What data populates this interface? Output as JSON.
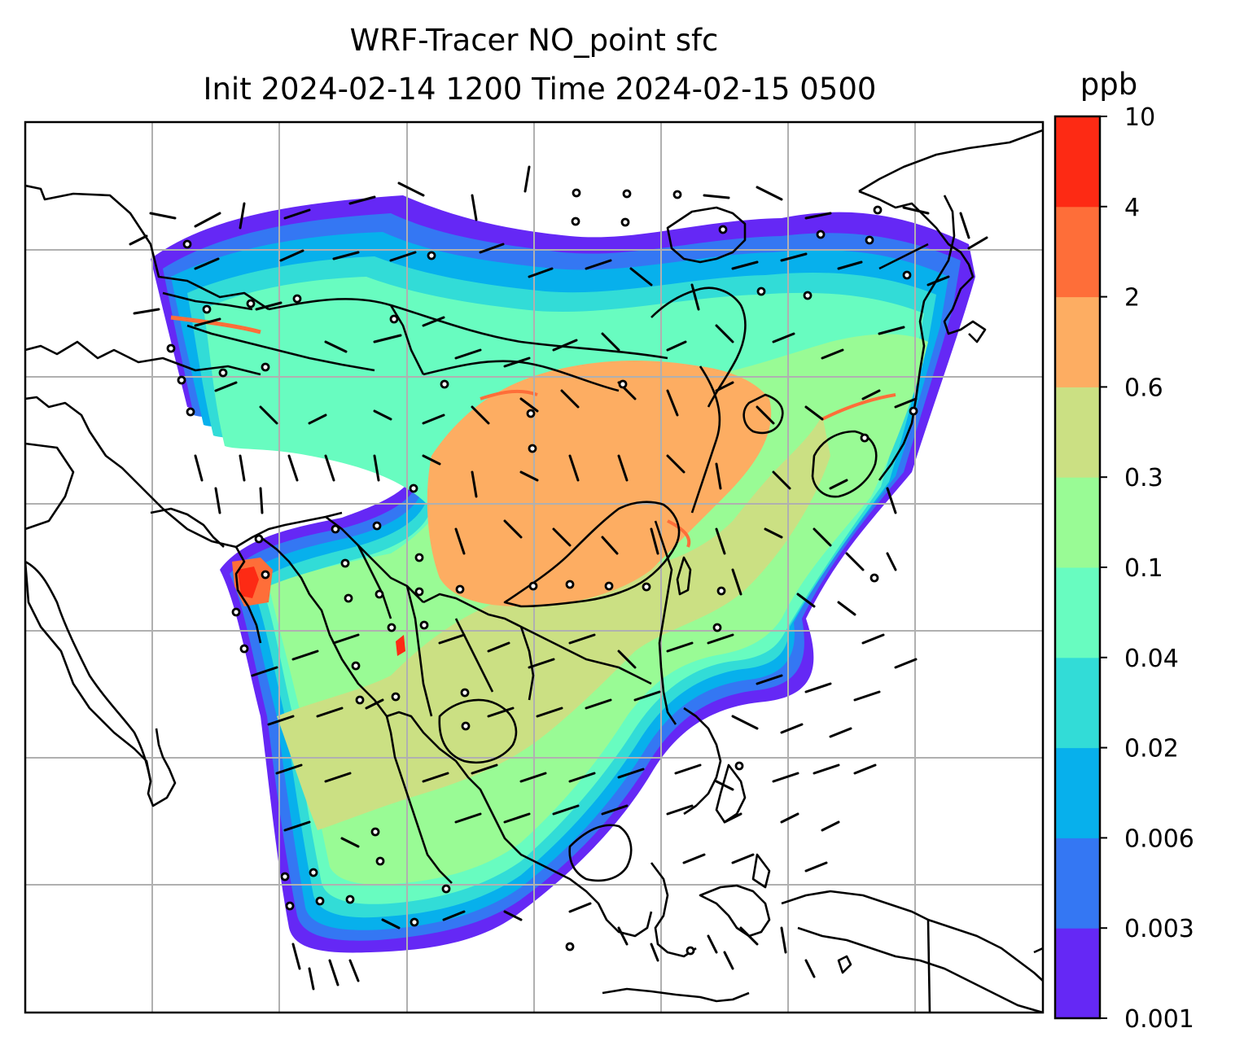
{
  "title": {
    "line1": "WRF-Tracer NO_point sfc",
    "line2": "Init 2024-02-14 1200 Time 2024-02-15 0500"
  },
  "map": {
    "variable": "NO_point",
    "level": "sfc",
    "gridlines": true,
    "coastlines": true,
    "borders": true,
    "wind_barbs": true
  },
  "colorbar": {
    "units": "ppb",
    "levels": [
      "0.001",
      "0.003",
      "0.006",
      "0.02",
      "0.04",
      "0.1",
      "0.3",
      "0.6",
      "2",
      "4",
      "10"
    ],
    "colors": [
      "#6528f5",
      "#3477f3",
      "#07b0ec",
      "#32dcd7",
      "#68fcc0",
      "#99fb95",
      "#cbe083",
      "#fdad62",
      "#fe6e39",
      "#fd2a14"
    ]
  }
}
